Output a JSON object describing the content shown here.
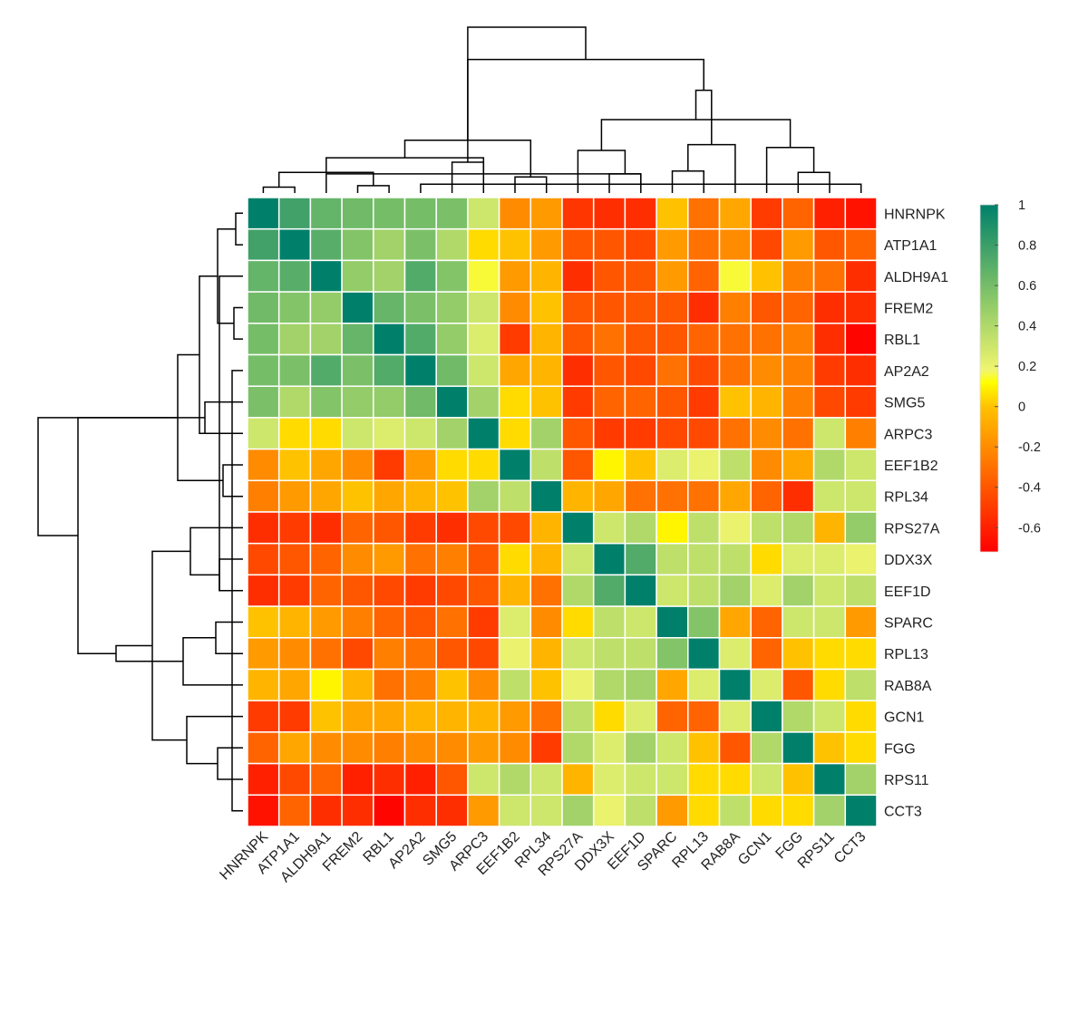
{
  "chart_data": {
    "type": "heatmap",
    "title": "",
    "xlabel": "",
    "ylabel": "",
    "labels": [
      "HNRNPK",
      "ATP1A1",
      "ALDH9A1",
      "FREM2",
      "RBL1",
      "AP2A2",
      "SMG5",
      "ARPC3",
      "EEF1B2",
      "RPL34",
      "RPS27A",
      "DDX3X",
      "EEF1D",
      "SPARC",
      "RPL13",
      "RAB8A",
      "GCN1",
      "FGG",
      "RPS11",
      "CCT3"
    ],
    "matrix": [
      [
        1.0,
        0.78,
        0.66,
        0.62,
        0.6,
        0.6,
        0.58,
        0.3,
        -0.2,
        -0.15,
        -0.52,
        -0.55,
        -0.55,
        0.0,
        -0.3,
        -0.1,
        -0.5,
        -0.35,
        -0.6,
        -0.65
      ],
      [
        0.78,
        1.0,
        0.7,
        0.55,
        0.45,
        0.58,
        0.4,
        0.05,
        0.0,
        -0.15,
        -0.4,
        -0.4,
        -0.45,
        -0.15,
        -0.3,
        -0.2,
        -0.45,
        -0.15,
        -0.4,
        -0.35
      ],
      [
        0.66,
        0.7,
        1.0,
        0.5,
        0.45,
        0.72,
        0.55,
        0.15,
        -0.15,
        -0.05,
        -0.55,
        -0.4,
        -0.4,
        -0.15,
        -0.35,
        0.15,
        0.0,
        -0.25,
        -0.3,
        -0.55
      ],
      [
        0.62,
        0.55,
        0.5,
        1.0,
        0.65,
        0.58,
        0.5,
        0.3,
        -0.2,
        0.0,
        -0.4,
        -0.4,
        -0.4,
        -0.4,
        -0.55,
        -0.25,
        -0.4,
        -0.35,
        -0.55,
        -0.55
      ],
      [
        0.6,
        0.45,
        0.45,
        0.65,
        1.0,
        0.72,
        0.5,
        0.25,
        -0.5,
        -0.05,
        -0.4,
        -0.3,
        -0.4,
        -0.4,
        -0.35,
        -0.3,
        -0.3,
        -0.25,
        -0.55,
        -0.7
      ],
      [
        0.6,
        0.58,
        0.72,
        0.58,
        0.72,
        1.0,
        0.62,
        0.3,
        -0.1,
        -0.05,
        -0.55,
        -0.4,
        -0.45,
        -0.3,
        -0.45,
        -0.3,
        -0.2,
        -0.25,
        -0.5,
        -0.55
      ],
      [
        0.58,
        0.4,
        0.55,
        0.5,
        0.5,
        0.62,
        1.0,
        0.45,
        0.05,
        0.0,
        -0.5,
        -0.35,
        -0.35,
        -0.4,
        -0.5,
        0.0,
        -0.05,
        -0.25,
        -0.45,
        -0.5
      ],
      [
        0.3,
        0.05,
        0.05,
        0.3,
        0.25,
        0.3,
        0.45,
        1.0,
        0.05,
        0.45,
        -0.4,
        -0.5,
        -0.5,
        -0.45,
        -0.45,
        -0.3,
        -0.2,
        -0.3,
        0.3,
        -0.25
      ],
      [
        -0.2,
        0.0,
        -0.1,
        -0.2,
        -0.5,
        -0.15,
        0.05,
        0.05,
        1.0,
        0.35,
        -0.4,
        0.1,
        0.0,
        0.25,
        0.2,
        0.35,
        -0.2,
        -0.1,
        0.4,
        0.3
      ],
      [
        -0.25,
        -0.15,
        -0.1,
        0.0,
        -0.1,
        -0.05,
        0.0,
        0.45,
        0.35,
        1.0,
        -0.05,
        -0.1,
        -0.3,
        -0.3,
        -0.3,
        -0.1,
        -0.35,
        -0.55,
        0.3,
        0.3
      ],
      [
        -0.55,
        -0.5,
        -0.55,
        -0.35,
        -0.4,
        -0.5,
        -0.55,
        -0.45,
        -0.45,
        -0.05,
        1.0,
        0.3,
        0.4,
        0.1,
        0.35,
        0.2,
        0.35,
        0.4,
        -0.05,
        0.5
      ],
      [
        -0.45,
        -0.4,
        -0.35,
        -0.2,
        -0.15,
        -0.3,
        -0.25,
        -0.4,
        0.05,
        -0.05,
        0.3,
        1.0,
        0.72,
        0.35,
        0.35,
        0.35,
        0.05,
        0.25,
        0.25,
        0.2
      ],
      [
        -0.55,
        -0.5,
        -0.35,
        -0.4,
        -0.45,
        -0.5,
        -0.45,
        -0.4,
        -0.05,
        -0.3,
        0.4,
        0.72,
        1.0,
        0.3,
        0.35,
        0.45,
        0.25,
        0.45,
        0.3,
        0.35
      ],
      [
        0.0,
        -0.05,
        -0.15,
        -0.25,
        -0.35,
        -0.4,
        -0.3,
        -0.5,
        0.25,
        -0.2,
        0.05,
        0.35,
        0.3,
        1.0,
        0.55,
        -0.1,
        -0.35,
        0.3,
        0.3,
        -0.15
      ],
      [
        -0.15,
        -0.2,
        -0.3,
        -0.45,
        -0.25,
        -0.3,
        -0.4,
        -0.45,
        0.2,
        -0.05,
        0.3,
        0.35,
        0.35,
        0.55,
        1.0,
        0.25,
        -0.35,
        0.0,
        0.05,
        0.05
      ],
      [
        -0.05,
        -0.1,
        0.1,
        -0.05,
        -0.3,
        -0.25,
        0.0,
        -0.2,
        0.35,
        0.0,
        0.2,
        0.4,
        0.45,
        -0.1,
        0.25,
        1.0,
        0.25,
        -0.4,
        0.05,
        0.35
      ],
      [
        -0.5,
        -0.5,
        0.0,
        -0.1,
        -0.1,
        -0.05,
        -0.05,
        -0.05,
        -0.15,
        -0.3,
        0.35,
        0.05,
        0.25,
        -0.35,
        -0.35,
        0.25,
        1.0,
        0.4,
        0.3,
        0.05
      ],
      [
        -0.35,
        -0.1,
        -0.2,
        -0.2,
        -0.25,
        -0.2,
        -0.2,
        -0.15,
        -0.2,
        -0.5,
        0.4,
        0.25,
        0.45,
        0.3,
        0.0,
        -0.4,
        0.4,
        1.0,
        0.0,
        0.05
      ],
      [
        -0.6,
        -0.45,
        -0.35,
        -0.6,
        -0.55,
        -0.6,
        -0.4,
        0.3,
        0.4,
        0.3,
        -0.05,
        0.25,
        0.3,
        0.3,
        0.05,
        0.05,
        0.3,
        0.0,
        1.0,
        0.45
      ],
      [
        -0.65,
        -0.35,
        -0.55,
        -0.55,
        -0.7,
        -0.55,
        -0.55,
        -0.15,
        0.3,
        0.3,
        0.45,
        0.2,
        0.35,
        -0.15,
        0.05,
        0.35,
        0.05,
        0.05,
        0.45,
        1.0
      ]
    ],
    "colorbar": {
      "range": [
        -0.72,
        1.0
      ],
      "ticks": [
        1,
        0.8,
        0.6,
        0.4,
        0.2,
        0,
        -0.2,
        -0.4,
        -0.6
      ],
      "tick_labels": [
        "1",
        "0.8",
        "0.6",
        "0.4",
        "0.2",
        "0",
        "-0.2",
        "-0.4",
        "-0.6"
      ],
      "gradient": [
        {
          "v": -0.72,
          "color": "#ff0000"
        },
        {
          "v": 0.0,
          "color": "#ffc200"
        },
        {
          "v": 0.12,
          "color": "#ffff00"
        },
        {
          "v": 0.18,
          "color": "#f0f56e"
        },
        {
          "v": 0.5,
          "color": "#93cc68"
        },
        {
          "v": 1.0,
          "color": "#00806a"
        }
      ]
    },
    "dendrogram": {
      "merges": [
        [
          0,
          1
        ],
        [
          3,
          4
        ],
        [
          19,
          5
        ],
        [
          22,
          2
        ],
        [
          23,
          6
        ],
        [
          21,
          20
        ],
        [
          7,
          25
        ],
        [
          8,
          9
        ],
        [
          27,
          26
        ],
        [
          11,
          12
        ],
        [
          17,
          18
        ],
        [
          13,
          14
        ],
        [
          29,
          10
        ],
        [
          30,
          16
        ],
        [
          31,
          15
        ],
        [
          32,
          33
        ],
        [
          35,
          34
        ],
        [
          36,
          28
        ],
        [
          37,
          24
        ]
      ]
    },
    "grid": false,
    "legend_placement": "right"
  },
  "colors": {
    "cell_border": "#ffffff",
    "dendrogram_line": "#000000",
    "text": "#222222"
  }
}
